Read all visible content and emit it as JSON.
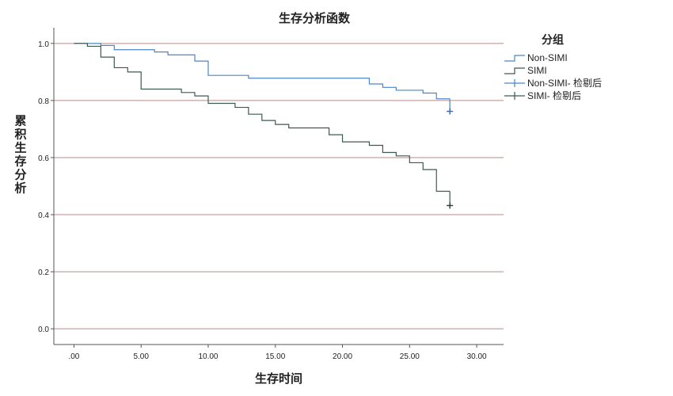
{
  "chart_data": {
    "type": "line",
    "subtype": "kaplan-meier-step",
    "title": "生存分析函数",
    "xlabel": "生存时间",
    "ylabel": "累积生存分析",
    "xlim": [
      -1.5,
      32.0
    ],
    "ylim": [
      -0.055,
      1.055
    ],
    "xticks": [
      0,
      5,
      10,
      15,
      20,
      25,
      30
    ],
    "xtick_labels": [
      ".00",
      "5.00",
      "10.00",
      "15.00",
      "20.00",
      "25.00",
      "30.00"
    ],
    "yticks": [
      0.0,
      0.2,
      0.4,
      0.6,
      0.8,
      1.0
    ],
    "ytick_labels": [
      "0.0",
      "0.2",
      "0.4",
      "0.6",
      "0.8",
      "1.0"
    ],
    "grid": "horizontal",
    "legend_position": "right",
    "legend_title": "分组",
    "legend_entries": [
      "Non-SIMI",
      "SIMI",
      "Non-SIMI- 检剔后",
      "SIMI- 检剔后"
    ],
    "series": [
      {
        "name": "Non-SIMI",
        "color": "#4a86c8",
        "censor_color": "#3a66a8",
        "step_x": [
          0,
          2,
          3,
          6,
          7,
          9,
          10,
          13,
          22,
          23,
          24,
          26,
          27,
          28
        ],
        "step_y": [
          1.0,
          0.993,
          0.978,
          0.97,
          0.96,
          0.938,
          0.888,
          0.878,
          0.858,
          0.846,
          0.836,
          0.826,
          0.806,
          0.806
        ],
        "censored": [
          {
            "x": 28,
            "y": 0.762
          }
        ]
      },
      {
        "name": "SIMI",
        "color": "#3d5a50",
        "censor_color": "#2a3a34",
        "step_x": [
          0,
          1,
          2,
          3,
          4,
          5,
          8,
          9,
          10,
          12,
          13,
          14,
          15,
          16,
          19,
          20,
          22,
          23,
          24,
          25,
          26,
          27,
          28
        ],
        "step_y": [
          1.0,
          0.99,
          0.952,
          0.915,
          0.9,
          0.84,
          0.828,
          0.816,
          0.79,
          0.776,
          0.752,
          0.73,
          0.716,
          0.704,
          0.68,
          0.655,
          0.643,
          0.618,
          0.606,
          0.582,
          0.558,
          0.482,
          0.482
        ],
        "censored": [
          {
            "x": 28,
            "y": 0.432
          }
        ]
      }
    ]
  }
}
